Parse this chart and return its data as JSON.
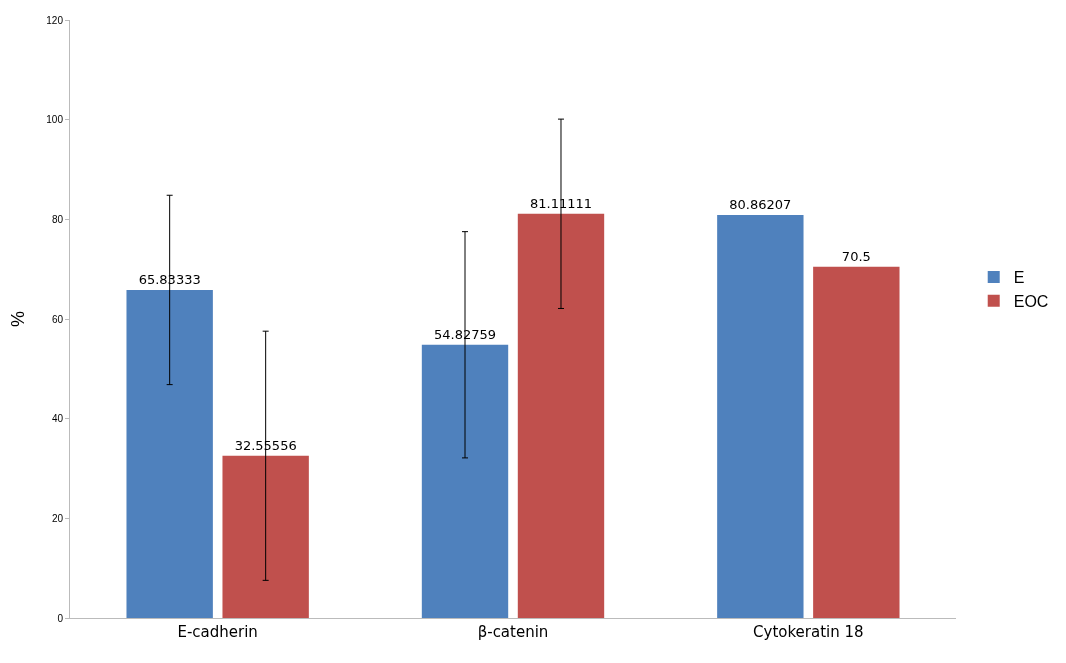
{
  "chart_data": {
    "type": "bar",
    "ylabel": "%",
    "categories": [
      "E-cadherin",
      "β-catenin",
      "Cytokeratin 18"
    ],
    "series": [
      {
        "name": "E",
        "color": "#4f81bd",
        "values": [
          65.83333,
          54.82759,
          80.86207
        ],
        "errors": [
          19,
          22.7,
          null
        ]
      },
      {
        "name": "EOC",
        "color": "#c0504d",
        "values": [
          32.55556,
          81.11111,
          70.5
        ],
        "errors": [
          25,
          19,
          null
        ]
      }
    ],
    "ylim": [
      0,
      120
    ],
    "yticks": [
      0,
      20,
      40,
      60,
      80,
      100,
      120
    ],
    "grid": false,
    "legend": "right",
    "data_labels": true
  }
}
